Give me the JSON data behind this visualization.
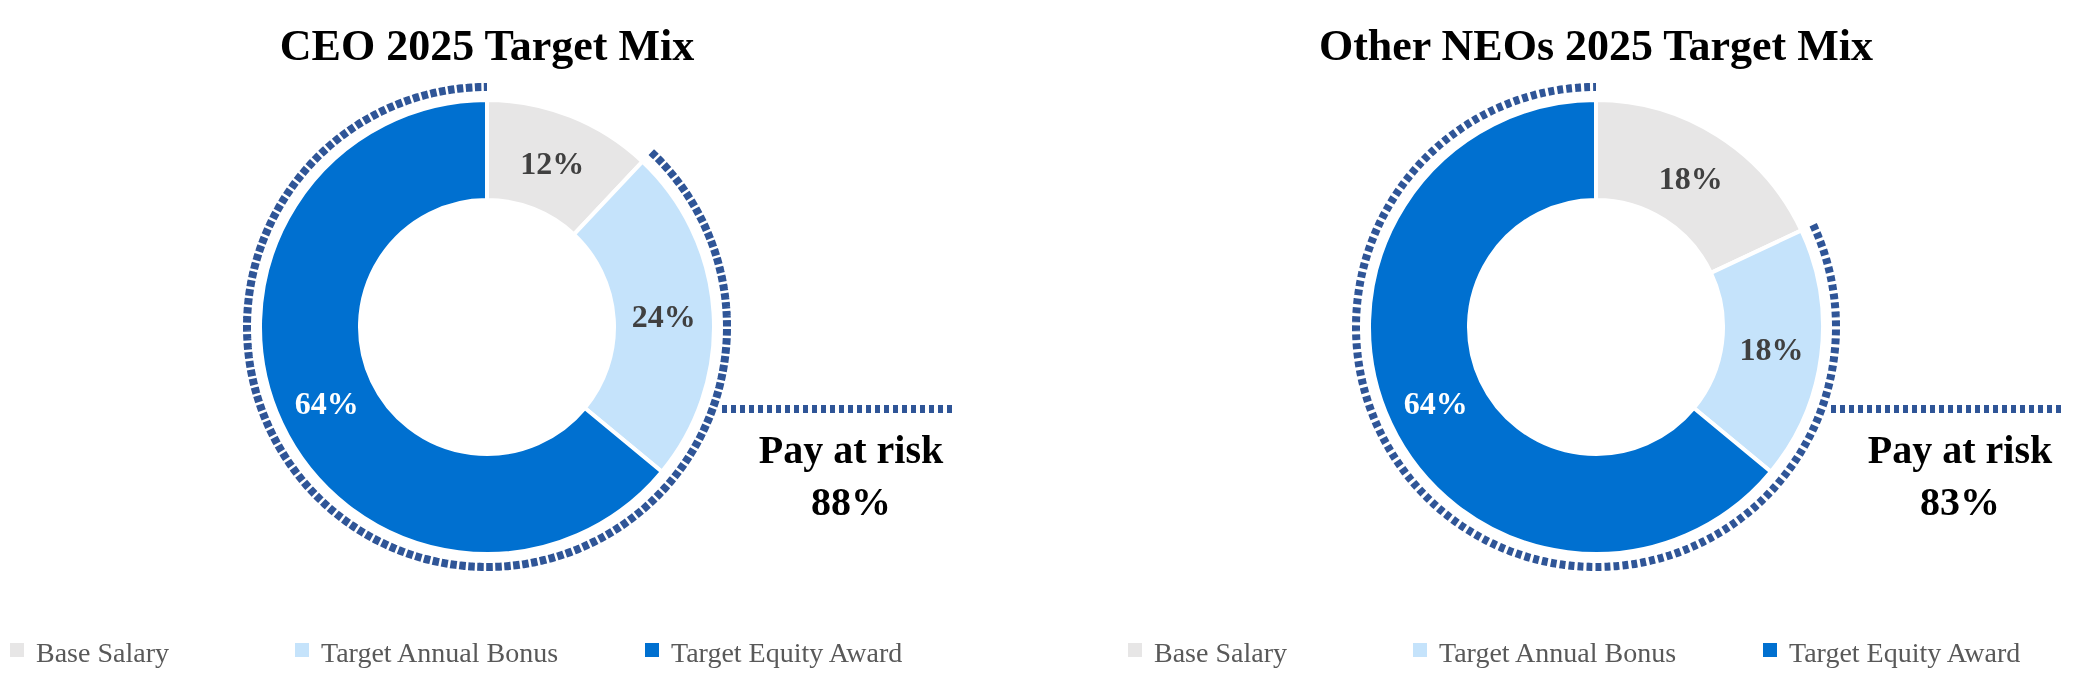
{
  "chart_data": [
    {
      "type": "donut",
      "title": "CEO 2025 Target Mix",
      "categories": [
        "Base Salary",
        "Target Annual Bonus",
        "Target Equity Award"
      ],
      "values": [
        12,
        24,
        64
      ],
      "value_labels": [
        "12%",
        "24%",
        "64%"
      ],
      "colors": [
        "#e7e6e6",
        "#c5e3fb",
        "#0070d0"
      ],
      "legend": "bottom",
      "annotations": [
        "Pay at risk",
        "88%"
      ]
    },
    {
      "type": "donut",
      "title": "Other NEOs 2025 Target Mix",
      "categories": [
        "Base Salary",
        "Target Annual Bonus",
        "Target Equity Award"
      ],
      "values": [
        18,
        18,
        64
      ],
      "value_labels": [
        "18%",
        "18%",
        "64%"
      ],
      "colors": [
        "#e7e6e6",
        "#c5e3fb",
        "#0070d0"
      ],
      "legend": "bottom",
      "annotations": [
        "Pay at risk",
        "83%"
      ]
    }
  ]
}
